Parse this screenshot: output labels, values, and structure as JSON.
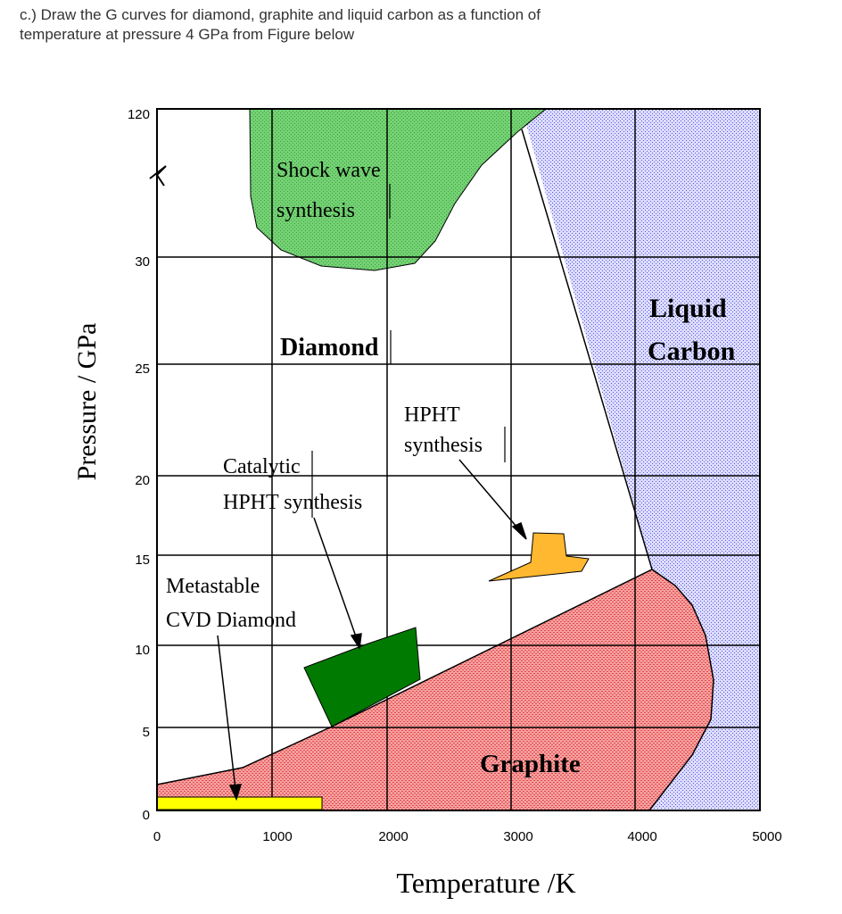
{
  "question": {
    "line1": "c.) Draw the G curves for diamond, graphite and liquid carbon as a function of",
    "line2": "temperature at pressure 4 GPa from Figure below"
  },
  "figure": {
    "x_axis_label": "Temperature /K",
    "y_axis_label": "Pressure / GPa",
    "x_ticks": [
      "0",
      "1000",
      "2000",
      "3000",
      "4000",
      "5000"
    ],
    "y_ticks": [
      "0",
      "5",
      "10",
      "15",
      "20",
      "25",
      "30",
      "120"
    ],
    "x_range": [
      0,
      5000
    ],
    "y_axis_broken": true,
    "regions": {
      "diamond": "Diamond",
      "graphite": "Graphite",
      "liquid_line1": "Liquid",
      "liquid_line2": "Carbon",
      "shock_line1": "Shock wave",
      "shock_line2": "synthesis",
      "hpht_line1": "HPHT",
      "hpht_line2": "synthesis",
      "catalytic_line1": "Catalytic",
      "catalytic_line2": "HPHT synthesis",
      "cvd_line1": "Metastable",
      "cvd_line2": "CVD Diamond"
    },
    "colors": {
      "shock": "#66cc66",
      "graphite": "#f08080",
      "liquid": "#ccccff",
      "hpht": "#ffb830",
      "catalytic": "#007a00",
      "cvd": "#ffff00"
    }
  }
}
